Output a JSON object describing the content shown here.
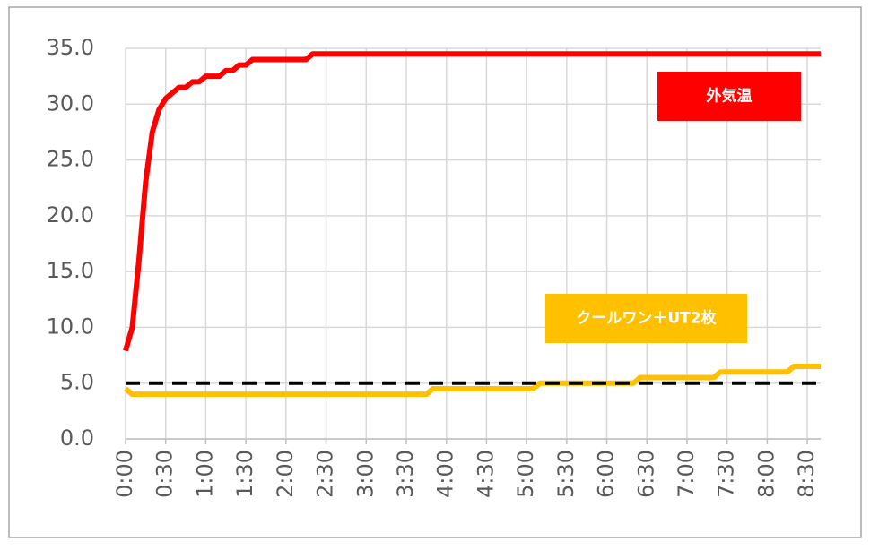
{
  "chart_data": {
    "type": "line",
    "xlim": [
      0,
      520
    ],
    "xticks": [
      {
        "value": 0,
        "label": "0:00"
      },
      {
        "value": 30,
        "label": "0:30"
      },
      {
        "value": 60,
        "label": "1:00"
      },
      {
        "value": 90,
        "label": "1:30"
      },
      {
        "value": 120,
        "label": "2:00"
      },
      {
        "value": 150,
        "label": "2:30"
      },
      {
        "value": 180,
        "label": "3:00"
      },
      {
        "value": 210,
        "label": "3:30"
      },
      {
        "value": 240,
        "label": "4:00"
      },
      {
        "value": 270,
        "label": "4:30"
      },
      {
        "value": 300,
        "label": "5:00"
      },
      {
        "value": 330,
        "label": "5:30"
      },
      {
        "value": 360,
        "label": "6:00"
      },
      {
        "value": 390,
        "label": "6:30"
      },
      {
        "value": 420,
        "label": "7:00"
      },
      {
        "value": 450,
        "label": "7:30"
      },
      {
        "value": 480,
        "label": "8:00"
      },
      {
        "value": 510,
        "label": "8:30"
      }
    ],
    "ylim": [
      0,
      35
    ],
    "yticks": [
      {
        "value": 0,
        "label": "0.0"
      },
      {
        "value": 5,
        "label": "5.0"
      },
      {
        "value": 10,
        "label": "10.0"
      },
      {
        "value": 15,
        "label": "15.0"
      },
      {
        "value": 20,
        "label": "20.0"
      },
      {
        "value": 25,
        "label": "25.0"
      },
      {
        "value": 30,
        "label": "30.0"
      },
      {
        "value": 35,
        "label": "35.0"
      }
    ],
    "grid": true,
    "series": [
      {
        "name": "外気温",
        "color": "#ff0000",
        "x": [
          0,
          5,
          10,
          15,
          20,
          25,
          30,
          35,
          40,
          45,
          50,
          55,
          60,
          70,
          75,
          80,
          85,
          90,
          95,
          135,
          140,
          520
        ],
        "values": [
          7.9,
          10,
          16,
          23,
          27.5,
          29.5,
          30.5,
          31,
          31.5,
          31.5,
          32,
          32,
          32.5,
          32.5,
          33,
          33,
          33.5,
          33.5,
          34,
          34,
          34.5,
          34.5
        ]
      },
      {
        "name": "クールワン＋UT2枚",
        "color": "#ffc000",
        "x": [
          0,
          5,
          225,
          230,
          305,
          310,
          380,
          385,
          440,
          445,
          495,
          500,
          520
        ],
        "values": [
          4.5,
          4,
          4,
          4.5,
          4.5,
          5,
          5,
          5.5,
          5.5,
          6,
          6,
          6.5,
          6.5
        ]
      },
      {
        "color": "#000000",
        "dashed": true,
        "x": [
          0,
          520
        ],
        "values": [
          5,
          5
        ]
      }
    ]
  }
}
